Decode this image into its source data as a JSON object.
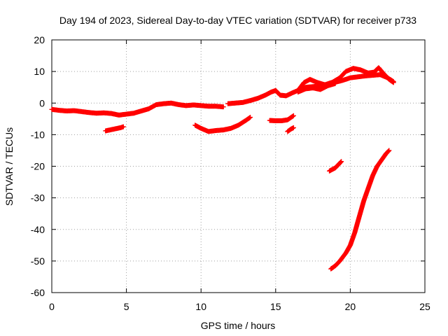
{
  "chart_data": {
    "type": "scatter",
    "title": "Day 194 of 2023, Sidereal Day-to-day VTEC variation (SDTVAR) for receiver p733",
    "xlabel": "GPS time / hours",
    "ylabel": "SDTVAR / TECUs",
    "xlim": [
      0,
      25
    ],
    "ylim": [
      -60,
      20
    ],
    "xticks": [
      0,
      5,
      10,
      15,
      20,
      25
    ],
    "yticks": [
      -60,
      -50,
      -40,
      -30,
      -20,
      -10,
      0,
      10,
      20
    ],
    "xtick_labels": [
      "0",
      "5",
      "10",
      "15",
      "20",
      "25"
    ],
    "ytick_labels": [
      "-60",
      "-50",
      "-40",
      "-30",
      "-20",
      "-10",
      "0",
      "10",
      "20"
    ],
    "grid": true,
    "marker": "+",
    "color": "#ff0000",
    "series": [
      {
        "name": "main-track-1",
        "points": [
          [
            0,
            -2
          ],
          [
            0.5,
            -2.3
          ],
          [
            1,
            -2.5
          ],
          [
            1.5,
            -2.4
          ],
          [
            2,
            -2.7
          ],
          [
            2.5,
            -3
          ],
          [
            3,
            -3.2
          ],
          [
            3.5,
            -3.1
          ],
          [
            4,
            -3.3
          ],
          [
            4.5,
            -3.8
          ],
          [
            5,
            -3.5
          ],
          [
            5.5,
            -3.2
          ],
          [
            6,
            -2.5
          ],
          [
            6.5,
            -1.8
          ],
          [
            7,
            -0.5
          ],
          [
            7.5,
            -0.2
          ],
          [
            8,
            0
          ],
          [
            8.5,
            -0.5
          ],
          [
            9,
            -0.8
          ],
          [
            9.5,
            -0.6
          ],
          [
            10,
            -0.8
          ],
          [
            10.5,
            -1
          ],
          [
            11,
            -1
          ],
          [
            11.5,
            -1.2
          ]
        ]
      },
      {
        "name": "main-track-2",
        "points": [
          [
            11.8,
            -0.2
          ],
          [
            12.3,
            0
          ],
          [
            12.8,
            0.2
          ],
          [
            13.3,
            0.8
          ],
          [
            13.8,
            1.5
          ],
          [
            14.3,
            2.5
          ],
          [
            14.7,
            3.5
          ],
          [
            15,
            4
          ],
          [
            15.3,
            2.5
          ],
          [
            15.7,
            2.3
          ],
          [
            16.1,
            3.2
          ],
          [
            16.5,
            4
          ],
          [
            17,
            5
          ],
          [
            17.5,
            5.2
          ],
          [
            18,
            5.5
          ],
          [
            18.5,
            6
          ],
          [
            19,
            6.6
          ],
          [
            19.5,
            7.2
          ],
          [
            20,
            8
          ],
          [
            20.5,
            8.3
          ],
          [
            21,
            8.6
          ],
          [
            21.5,
            8.8
          ],
          [
            22,
            9
          ],
          [
            22.5,
            8
          ],
          [
            22.9,
            6.8
          ]
        ]
      },
      {
        "name": "upper-branch",
        "points": [
          [
            16.5,
            4
          ],
          [
            16.9,
            6.5
          ],
          [
            17.3,
            7.5
          ],
          [
            17.8,
            6.5
          ],
          [
            18.3,
            5.8
          ],
          [
            18.8,
            6.6
          ],
          [
            19.3,
            8
          ],
          [
            19.7,
            10
          ],
          [
            20.2,
            11
          ],
          [
            20.7,
            10.5
          ],
          [
            21.2,
            9.5
          ],
          [
            21.6,
            9.8
          ],
          [
            21.9,
            11.2
          ],
          [
            22.2,
            9.5
          ],
          [
            22.6,
            7.5
          ],
          [
            22.9,
            6.5
          ]
        ]
      },
      {
        "name": "mid-branch",
        "points": [
          [
            16.5,
            3.5
          ],
          [
            17,
            4.5
          ],
          [
            17.5,
            4.8
          ],
          [
            18,
            4.3
          ],
          [
            18.5,
            5.5
          ],
          [
            19,
            6.2
          ]
        ]
      },
      {
        "name": "segment-a",
        "points": [
          [
            3.6,
            -8.8
          ],
          [
            3.9,
            -8.5
          ],
          [
            4.2,
            -8.2
          ],
          [
            4.6,
            -7.8
          ],
          [
            4.8,
            -7.5
          ]
        ]
      },
      {
        "name": "segment-b",
        "points": [
          [
            9.6,
            -7
          ],
          [
            10,
            -8
          ],
          [
            10.5,
            -9
          ],
          [
            11,
            -8.7
          ],
          [
            11.5,
            -8.5
          ],
          [
            12,
            -8
          ],
          [
            12.5,
            -7
          ],
          [
            13,
            -5.5
          ],
          [
            13.3,
            -4.5
          ]
        ]
      },
      {
        "name": "segment-c",
        "points": [
          [
            14.6,
            -5.5
          ],
          [
            15,
            -5.6
          ],
          [
            15.4,
            -5.6
          ],
          [
            15.8,
            -5.3
          ],
          [
            16.2,
            -4
          ]
        ]
      },
      {
        "name": "segment-d",
        "points": [
          [
            15.8,
            -9
          ],
          [
            16,
            -8.3
          ],
          [
            16.2,
            -7.8
          ]
        ]
      },
      {
        "name": "segment-e",
        "points": [
          [
            18.6,
            -21.5
          ],
          [
            18.8,
            -21
          ],
          [
            19,
            -20.5
          ],
          [
            19.2,
            -19.5
          ],
          [
            19.4,
            -18.5
          ]
        ]
      },
      {
        "name": "descending-track",
        "points": [
          [
            18.7,
            -52.5
          ],
          [
            19,
            -51.5
          ],
          [
            19.3,
            -50
          ],
          [
            19.7,
            -47.5
          ],
          [
            20,
            -45
          ],
          [
            20.3,
            -41
          ],
          [
            20.6,
            -36
          ],
          [
            20.9,
            -31
          ],
          [
            21.2,
            -27
          ],
          [
            21.5,
            -23
          ],
          [
            21.8,
            -20
          ],
          [
            22.1,
            -18
          ],
          [
            22.4,
            -16
          ],
          [
            22.6,
            -15
          ]
        ]
      }
    ]
  }
}
